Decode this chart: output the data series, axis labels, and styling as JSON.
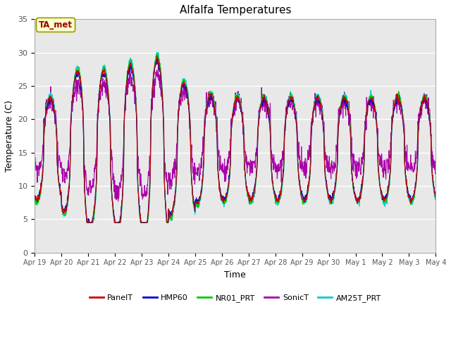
{
  "title": "Alfalfa Temperatures",
  "xlabel": "Time",
  "ylabel": "Temperature (C)",
  "annotation": "TA_met",
  "ylim": [
    0,
    35
  ],
  "xlim_days": 15,
  "x_tick_labels": [
    "Apr 19",
    "Apr 20",
    "Apr 21",
    "Apr 22",
    "Apr 23",
    "Apr 24",
    "Apr 25",
    "Apr 26",
    "Apr 27",
    "Apr 28",
    "Apr 29",
    "Apr 30",
    "May 1",
    "May 2",
    "May 3",
    "May 4"
  ],
  "legend_entries": [
    "PanelT",
    "HMP60",
    "NR01_PRT",
    "SonicT",
    "AM25T_PRT"
  ],
  "legend_colors": [
    "#cc0000",
    "#0000cc",
    "#00cc00",
    "#aa00aa",
    "#00cccc"
  ],
  "line_colors": {
    "PanelT": "#cc0000",
    "HMP60": "#0000cc",
    "NR01_PRT": "#00cc00",
    "SonicT": "#aa00aa",
    "AM25T_PRT": "#00cccc"
  },
  "bg_color": "#e8e8e8",
  "grid_color": "#ffffff",
  "num_points": 1440,
  "figsize": [
    6.4,
    4.8
  ],
  "dpi": 100
}
